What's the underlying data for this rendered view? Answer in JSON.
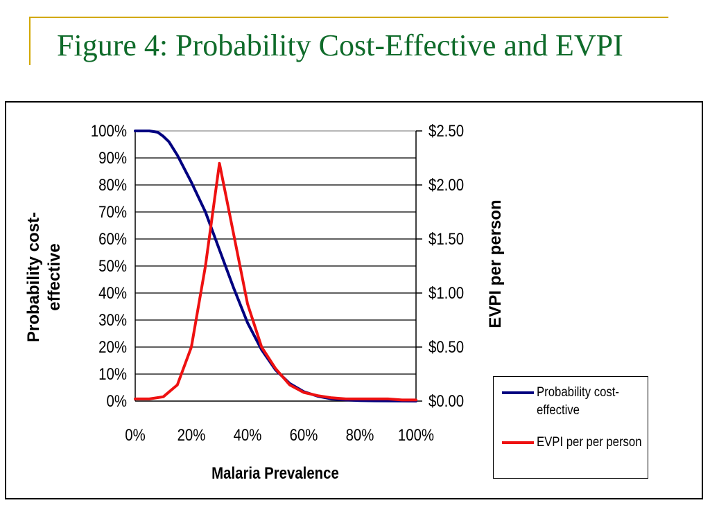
{
  "slide": {
    "title": "Figure 4: Probability Cost-Effective and EVPI"
  },
  "colors": {
    "title": "#0f6b2a",
    "accent": "#d2a800",
    "probability_line": "#000080",
    "evpi_line": "#ee1111"
  },
  "chart_data": {
    "type": "line",
    "title": "",
    "xlabel": "Malaria Prevalence",
    "ylabel_left": "Probability cost-effective",
    "ylabel_right": "EVPI per person",
    "xlim": [
      0,
      1
    ],
    "ylim_left": [
      0,
      1
    ],
    "ylim_right": [
      0,
      2.5
    ],
    "x_ticks": [
      "0%",
      "20%",
      "40%",
      "60%",
      "80%",
      "100%"
    ],
    "y_ticks_left": [
      "0%",
      "10%",
      "20%",
      "30%",
      "40%",
      "50%",
      "60%",
      "70%",
      "80%",
      "90%",
      "100%"
    ],
    "y_ticks_right": [
      "$0.00",
      "$0.50",
      "$1.00",
      "$1.50",
      "$2.00",
      "$2.50"
    ],
    "grid": "horizontal",
    "legend_position": "bottom-right",
    "series": [
      {
        "name": "Probability cost-effective",
        "axis": "left",
        "x": [
          0,
          0.05,
          0.08,
          0.1,
          0.12,
          0.15,
          0.2,
          0.25,
          0.3,
          0.35,
          0.4,
          0.45,
          0.5,
          0.55,
          0.6,
          0.65,
          0.7,
          0.75,
          0.8,
          0.85,
          0.9,
          0.95,
          1.0
        ],
        "values": [
          1.0,
          1.0,
          0.995,
          0.98,
          0.96,
          0.91,
          0.81,
          0.7,
          0.56,
          0.42,
          0.29,
          0.19,
          0.115,
          0.065,
          0.035,
          0.018,
          0.008,
          0.004,
          0.002,
          0.001,
          0.0005,
          0.0002,
          0.0
        ]
      },
      {
        "name": "EVPI per per person",
        "axis": "right",
        "x": [
          0,
          0.05,
          0.1,
          0.15,
          0.2,
          0.25,
          0.3,
          0.35,
          0.4,
          0.45,
          0.5,
          0.55,
          0.6,
          0.65,
          0.7,
          0.75,
          0.8,
          0.85,
          0.9,
          0.95,
          1.0
        ],
        "values": [
          0.02,
          0.02,
          0.04,
          0.15,
          0.5,
          1.25,
          2.2,
          1.55,
          0.9,
          0.5,
          0.3,
          0.15,
          0.08,
          0.05,
          0.03,
          0.02,
          0.02,
          0.02,
          0.02,
          0.01,
          0.01
        ]
      }
    ]
  }
}
